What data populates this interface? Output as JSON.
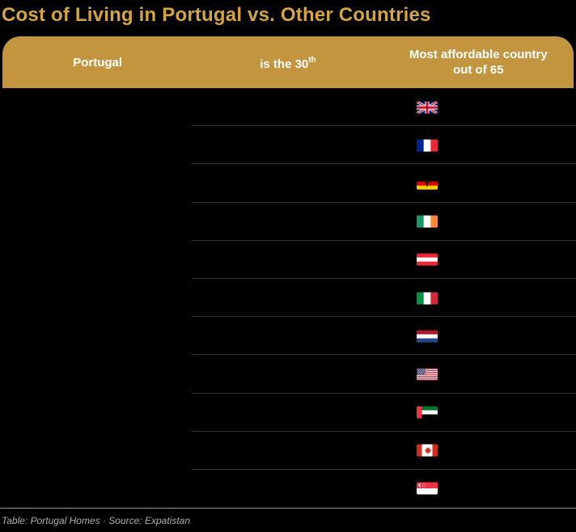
{
  "title": "Cost of Living in Portugal vs. Other Countries",
  "header": {
    "col1": "Portugal",
    "col2_text": "is the 30",
    "col2_sup": "th",
    "col3_line1": "Most affordable country",
    "col3_line2": "out of 65"
  },
  "rows": [
    {
      "flag_icon": "united-kingdom-flag"
    },
    {
      "flag_icon": "france-flag"
    },
    {
      "flag_icon": "germany-flag"
    },
    {
      "flag_icon": "ireland-flag"
    },
    {
      "flag_icon": "austria-flag"
    },
    {
      "flag_icon": "italy-flag"
    },
    {
      "flag_icon": "netherlands-flag"
    },
    {
      "flag_icon": "usa-flag"
    },
    {
      "flag_icon": "uae-flag"
    },
    {
      "flag_icon": "canada-flag"
    },
    {
      "flag_icon": "singapore-flag"
    }
  ],
  "footer": "Table: Portugal Homes · Source: Expatistan",
  "colors": {
    "background": "#000000",
    "title": "#D4A53E",
    "header_bg": "#C2953E",
    "header_text": "#FFFFFF",
    "row_divider": "#333333",
    "footer_rule": "#999999",
    "footer_text": "#A9AEB6"
  },
  "chart_data": {
    "type": "table",
    "title": "Cost of Living in Portugal vs. Other Countries",
    "columns": [
      "Portugal",
      "is the 30th",
      "Most affordable country out of 65"
    ],
    "rank": 30,
    "total_countries": 65,
    "rows_flags": [
      "United Kingdom",
      "France",
      "Germany",
      "Ireland",
      "Austria",
      "Italy",
      "Netherlands",
      "United States",
      "United Arab Emirates",
      "Canada",
      "Singapore"
    ],
    "attribution": "Table: Portugal Homes · Source: Expatistan"
  }
}
